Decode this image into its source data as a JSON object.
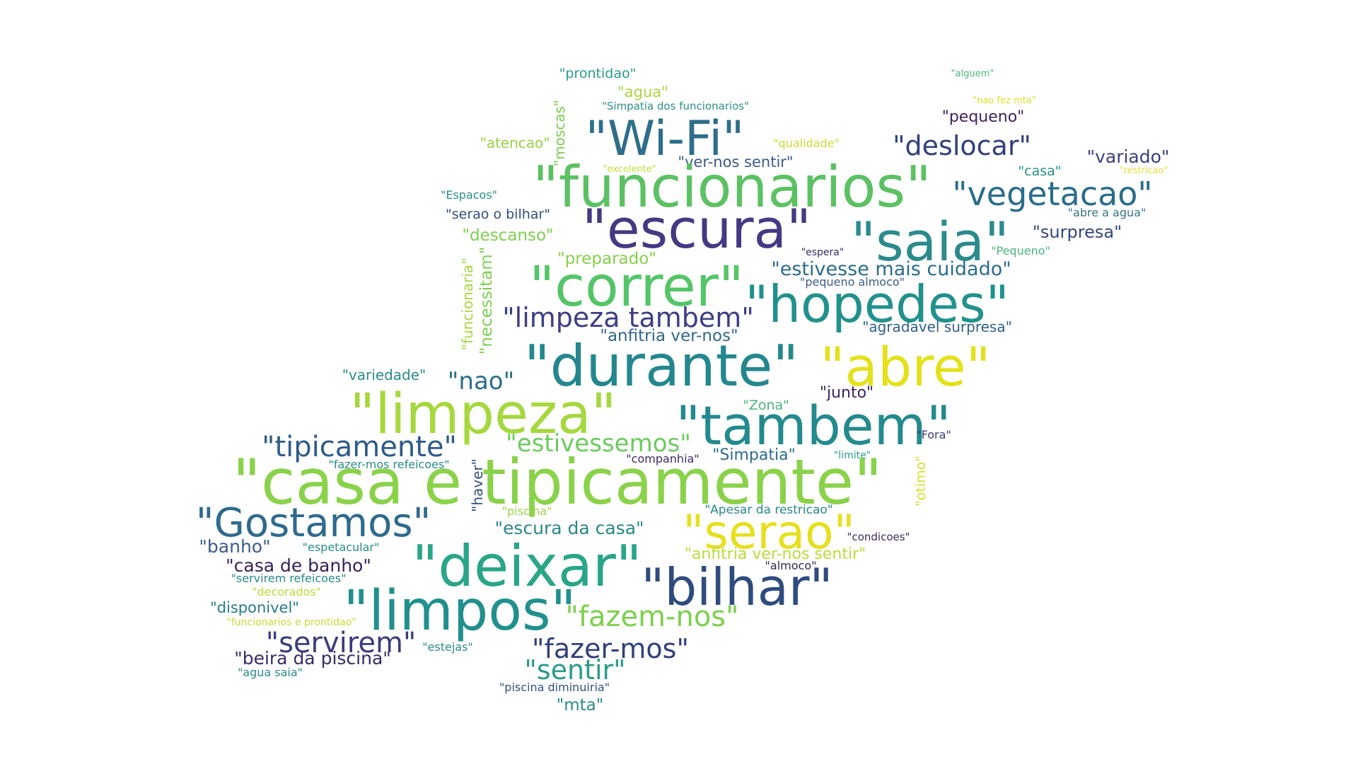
{
  "words": [
    {
      "text": "\"prontidao\"",
      "color": "#2a9b8a"
    },
    {
      "text": "\"alguem\"",
      "color": "#4cb77a"
    },
    {
      "text": "\"agua\"",
      "color": "#a8d83e"
    },
    {
      "text": "\"nao fez mta\"",
      "color": "#e0dd20"
    },
    {
      "text": "\"Simpatia dos funcionarios\"",
      "color": "#2f8f8a"
    },
    {
      "text": "\"pequeno\"",
      "color": "#3b1f5a"
    },
    {
      "text": "\"moscas\"",
      "color": "#7ccf52"
    },
    {
      "text": "\"Wi-Fi\"",
      "color": "#2e6e8a"
    },
    {
      "text": "\"atencao\"",
      "color": "#9ad347"
    },
    {
      "text": "\"qualidade\"",
      "color": "#c8dc35"
    },
    {
      "text": "\"deslocar\"",
      "color": "#31407a"
    },
    {
      "text": "\"variado\"",
      "color": "#3b3f7c"
    },
    {
      "text": "\"excelente\"",
      "color": "#c2dc3a"
    },
    {
      "text": "\"ver-nos sentir\"",
      "color": "#3a5a8a"
    },
    {
      "text": "\"casa\"",
      "color": "#2a8f8a"
    },
    {
      "text": "\"restricao\"",
      "color": "#e6de3a"
    },
    {
      "text": "\"funcionarios\"",
      "color": "#5cc163"
    },
    {
      "text": "\"vegetacao\"",
      "color": "#2a6c8c"
    },
    {
      "text": "\"Espacos\"",
      "color": "#2a8f8a"
    },
    {
      "text": "\"abre a agua\"",
      "color": "#35758a"
    },
    {
      "text": "\"serao o bilhar\"",
      "color": "#2f4d7e"
    },
    {
      "text": "\"escura\"",
      "color": "#443983"
    },
    {
      "text": "\"saia\"",
      "color": "#2b8a8c"
    },
    {
      "text": "\"surpresa\"",
      "color": "#34477e"
    },
    {
      "text": "\"descanso\"",
      "color": "#7dcf4e"
    },
    {
      "text": "\"espera\"",
      "color": "#3a2a66"
    },
    {
      "text": "\"Pequeno\"",
      "color": "#4ab57c"
    },
    {
      "text": "\"preparado\"",
      "color": "#86d149"
    },
    {
      "text": "\"estivesse mais cuidado\"",
      "color": "#2a6c8c"
    },
    {
      "text": "\"funcionaria\"",
      "color": "#a5d93f"
    },
    {
      "text": "\"necessitam\"",
      "color": "#7ccf52"
    },
    {
      "text": "\"correr\"",
      "color": "#54c568"
    },
    {
      "text": "\"pequeno almoco\"",
      "color": "#3b5b8a"
    },
    {
      "text": "\"hopedes\"",
      "color": "#21918c"
    },
    {
      "text": "\"limpeza tambem\"",
      "color": "#3e3d84"
    },
    {
      "text": "\"agradavel surpresa\"",
      "color": "#2f5f8a"
    },
    {
      "text": "\"anfitria ver-nos\"",
      "color": "#31668e"
    },
    {
      "text": "\"durante\"",
      "color": "#24878e"
    },
    {
      "text": "\"abre\"",
      "color": "#e4e11b"
    },
    {
      "text": "\"variedade\"",
      "color": "#2a8a8a"
    },
    {
      "text": "\"nao\"",
      "color": "#2c6e8a"
    },
    {
      "text": "\"junto\"",
      "color": "#3a2563"
    },
    {
      "text": "\"limpeza\"",
      "color": "#a6d83e"
    },
    {
      "text": "\"Zona\"",
      "color": "#4ab57c"
    },
    {
      "text": "\"tambem\"",
      "color": "#238a8d"
    },
    {
      "text": "\"Fora\"",
      "color": "#3a3a7a"
    },
    {
      "text": "\"tipicamente\"",
      "color": "#2d5b89"
    },
    {
      "text": "\"estivessemos\"",
      "color": "#6ccb5e"
    },
    {
      "text": "\"fazer-mos refeicoes\"",
      "color": "#2a8a8a"
    },
    {
      "text": "\"companhia\"",
      "color": "#3b2a62"
    },
    {
      "text": "\"Simpatia\"",
      "color": "#2e6b8c"
    },
    {
      "text": "\"limite\"",
      "color": "#2a9b8a"
    },
    {
      "text": "\"otimo\"",
      "color": "#d7df2a"
    },
    {
      "text": "\"casa e tipicamente\"",
      "color": "#8ad24a"
    },
    {
      "text": "\"haver\"",
      "color": "#31517e"
    },
    {
      "text": "\"Gostamos\"",
      "color": "#2e6a8c"
    },
    {
      "text": "\"piscina\"",
      "color": "#9ad547"
    },
    {
      "text": "\"Apesar da restricao\"",
      "color": "#2a8a8a"
    },
    {
      "text": "\"serao\"",
      "color": "#e6e01c"
    },
    {
      "text": "\"escura da casa\"",
      "color": "#29878c"
    },
    {
      "text": "\"condicoes\"",
      "color": "#3b2a62"
    },
    {
      "text": "\"banho\"",
      "color": "#3b5c8a"
    },
    {
      "text": "\"espetacular\"",
      "color": "#2a8a8a"
    },
    {
      "text": "\"deixar\"",
      "color": "#29a588"
    },
    {
      "text": "\"anfitria ver-nos sentir\"",
      "color": "#b8de3a"
    },
    {
      "text": "\"casa de banho\"",
      "color": "#3a1f58"
    },
    {
      "text": "\"almoco\"",
      "color": "#2a2a5a"
    },
    {
      "text": "\"bilhar\"",
      "color": "#2f4c7e"
    },
    {
      "text": "\"servirem refeicoes\"",
      "color": "#2a8a8a"
    },
    {
      "text": "\"decorados\"",
      "color": "#b8de3a"
    },
    {
      "text": "\"limpos\"",
      "color": "#21908d"
    },
    {
      "text": "\"fazem-nos\"",
      "color": "#7dcf4e"
    },
    {
      "text": "\"disponivel\"",
      "color": "#2a7a8a"
    },
    {
      "text": "\"funcionarios e prontidao\"",
      "color": "#c8dc35"
    },
    {
      "text": "\"servirem\"",
      "color": "#3b3b7c"
    },
    {
      "text": "\"estejas\"",
      "color": "#2a8a8a"
    },
    {
      "text": "\"fazer-mos\"",
      "color": "#31407a"
    },
    {
      "text": "\"beira da piscina\"",
      "color": "#3a2a66"
    },
    {
      "text": "\"sentir\"",
      "color": "#2a9b8a"
    },
    {
      "text": "\"agua saia\"",
      "color": "#2a8a8a"
    },
    {
      "text": "\"piscina diminuiria\"",
      "color": "#31517e"
    },
    {
      "text": "\"mta\"",
      "color": "#2a8a8a"
    }
  ]
}
